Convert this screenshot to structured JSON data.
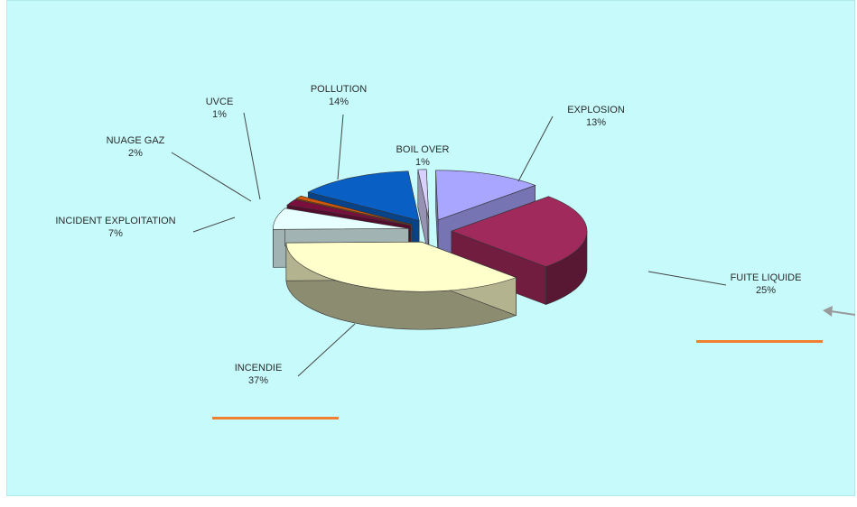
{
  "chart_data": {
    "type": "pie",
    "style": "3d-exploded",
    "slices": [
      {
        "label": "EXPLOSION",
        "pct_label": "13%",
        "value": 13,
        "color": "#a9a6ff"
      },
      {
        "label": "FUITE LIQUIDE",
        "pct_label": "25%",
        "value": 25,
        "color": "#a02a5c"
      },
      {
        "label": "INCENDIE",
        "pct_label": "37%",
        "value": 37,
        "color": "#ffffcc"
      },
      {
        "label": "INCIDENT EXPLOITATION",
        "pct_label": "7%",
        "value": 7,
        "color": "#e8ffff"
      },
      {
        "label": "NUAGE GAZ",
        "pct_label": "2%",
        "value": 2,
        "color": "#7a0f3e"
      },
      {
        "label": "UVCE",
        "pct_label": "1%",
        "value": 1,
        "color": "#d4590a"
      },
      {
        "label": "POLLUTION",
        "pct_label": "14%",
        "value": 14,
        "color": "#0a5fc4"
      },
      {
        "label": "BOIL OVER",
        "pct_label": "1%",
        "value": 1,
        "color": "#d8d0ff"
      }
    ]
  },
  "decorations": {
    "underline_color": "#f08030",
    "arrow_color": "#9a9a9a"
  }
}
